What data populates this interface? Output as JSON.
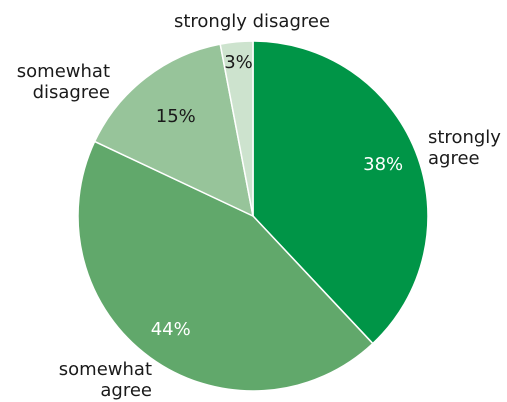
{
  "chart_data": {
    "type": "pie",
    "title": "",
    "slices": [
      {
        "label": "strongly agree",
        "label_lines": [
          "strongly",
          "agree"
        ],
        "value": 38,
        "display": "38%",
        "color": "#009547",
        "text_color": "#ffffff"
      },
      {
        "label": "somewhat agree",
        "label_lines": [
          "somewhat",
          "agree"
        ],
        "value": 44,
        "display": "44%",
        "color": "#61a86b",
        "text_color": "#ffffff"
      },
      {
        "label": "somewhat disagree",
        "label_lines": [
          "somewhat",
          "disagree"
        ],
        "value": 15,
        "display": "15%",
        "color": "#97c49a",
        "text_color": "#1a1a1a"
      },
      {
        "label": "strongly disagree",
        "label_lines": [
          "strongly disagree"
        ],
        "value": 3,
        "display": "3%",
        "color": "#cde3ce",
        "text_color": "#1a1a1a"
      }
    ],
    "start_angle": "12 o'clock",
    "direction": "clockwise",
    "legend": "none"
  }
}
